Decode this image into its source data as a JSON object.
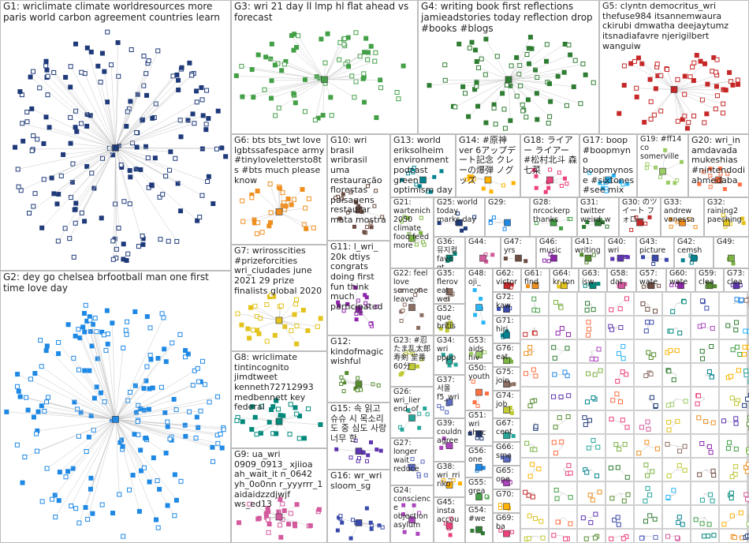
{
  "groups": [
    "G1: wriclimate climate worldresources more paris world carbon agreement countries learn",
    "G2: dey go chelsea brfootball man one first time love day",
    "G3: wri 21 day ll lmp hl flat ahead vs forecast",
    "G4: writing book first reflections jamieadstories today reflection drop #books #blogs",
    "G5: clyntn democritus_wri thefuse984 itsannemwaura ckirubi dmwatha deejaytumz itsnadiafavre njerigilbert wanguiw",
    "G6: bts bts_twt love lgbtssafespace army #tinylovelettersto8ts #bts much please know",
    "G7: wrirosscities #prizeforcities wri_ciudades june 2021 29 prize finalists global 2020",
    "G8: wriclimate tintincognito jimdtweet kenneth72712993 medbennett key federal",
    "G9: ua_wri 0909_0913_ xjiioa ah_wait_it n_0642 yh_0o0nn r_yyyrrr_1 aidaidzzdjwjf ws_ed13",
    "G10: wri brasil wribrasil uma restauração florestas paisagens restaurar mata mostra",
    "G11: l_wri_ 20k dtiys congrats doing first fun think much participated",
    "G12: kindofmagic wishful",
    "G15: 속 읽고 슈슈 시 목소리도 중 심도 사랑 너무 한",
    "G16: wr_wri sloom_sg",
    "G13: world eriksolheim environment podcast green optimism day",
    "G21: wartenich 2050 climate food feed more",
    "G22: feel love someone leave",
    "G23: #忍たま乱太郎 寿剣 堂番 60分",
    "G26: wri_lier end_of",
    "G27: longer wait reduce",
    "G24: conscience objection asylum",
    "G14: #原神 ver 6アップデート記念 クレーの爆弾 ノグッズ",
    "G18: ライアー ライアー #松村北斗 森七菜",
    "G17: boop #boopmyno boopmynose #sixtones #see mix retrieve",
    "G19: #ff14 co somerville",
    "G20: wri_in amdavada mukeshias #nintendodi ahmedaba",
    "G25: world today marks day",
    "G29: ",
    "G28: nrcockerp thanks",
    "G31: twitter weird_w",
    "G30: のツイート フォロー",
    "G33: andrew vanessa",
    "G32: raining2 paeching",
    "G36: 뮤지컬 fave gt",
    "G44: ",
    "G47: yrs",
    "G46: music",
    "G41: writing",
    "G40: wri",
    "G43: picture",
    "G42: cemsh",
    "G49: ",
    "G35: flerov eat wel",
    "G52: que britis",
    "G34: wri pppp",
    "G37: 서울 f5_wri",
    "G39: couldn agree",
    "G38: wri_rri riko",
    "G45: insta accou",
    "G48: oji_",
    "G53: aids hiv",
    "G50: youth",
    "G51: wri chac",
    "G56: one",
    "G55: grea",
    "G54: #we",
    "G62: victor",
    "G61: find",
    "G64: kr ton",
    "G63: isw",
    "G58: dat",
    "G57: wate",
    "G60: wate",
    "G59: clea",
    "G73: clea",
    "G72: kaw",
    "G71: hiri",
    "G76: eat",
    "G75: join",
    "G74: job",
    "G67: cent",
    "G66: sma",
    "G65: one",
    "G70: ",
    "G69: ba"
  ]
}
